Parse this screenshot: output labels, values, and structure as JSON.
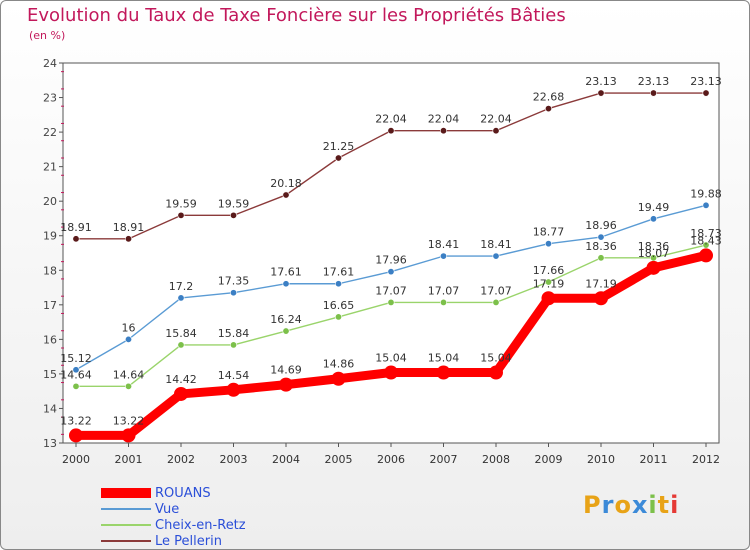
{
  "chart_data": {
    "type": "line",
    "title": "Evolution du Taux de Taxe Foncière sur les Propriétés Bâties",
    "subtitle": "(en %)",
    "xlabel": "",
    "ylabel": "",
    "ylim": [
      13,
      24
    ],
    "yticks": [
      "13",
      "14",
      "15",
      "16",
      "17",
      "18",
      "19",
      "20",
      "21",
      "22",
      "23",
      "24"
    ],
    "categories": [
      "2000",
      "2001",
      "2002",
      "2003",
      "2004",
      "2005",
      "2006",
      "2007",
      "2008",
      "2009",
      "2010",
      "2011",
      "2012"
    ],
    "series": [
      {
        "name": "Le Pellerin",
        "color": "#8b3a3a",
        "dot": "#5a1a1a",
        "values": [
          18.91,
          18.91,
          19.59,
          19.59,
          20.18,
          21.25,
          22.04,
          22.04,
          22.04,
          22.68,
          23.13,
          23.13,
          23.13
        ],
        "labels": [
          "18.91",
          "18.91",
          "19.59",
          "19.59",
          "20.18",
          "21.25",
          "22.04",
          "22.04",
          "22.04",
          "22.68",
          "23.13",
          "23.13",
          "23.13"
        ]
      },
      {
        "name": "Vue",
        "color": "#5a9bd4",
        "dot": "#3b7fc4",
        "values": [
          15.12,
          16,
          17.2,
          17.35,
          17.61,
          17.61,
          17.96,
          18.41,
          18.41,
          18.77,
          18.96,
          19.49,
          19.88
        ],
        "labels": [
          "15.12",
          "16",
          "17.2",
          "17.35",
          "17.61",
          "17.61",
          "17.96",
          "18.41",
          "18.41",
          "18.77",
          "18.96",
          "19.49",
          "19.88"
        ]
      },
      {
        "name": "Cheix-en-Retz",
        "color": "#9ad46b",
        "dot": "#7cc04a",
        "values": [
          14.64,
          14.64,
          15.84,
          15.84,
          16.24,
          16.65,
          17.07,
          17.07,
          17.07,
          17.66,
          18.36,
          18.36,
          18.73
        ],
        "labels": [
          "14.64",
          "14.64",
          "15.84",
          "15.84",
          "16.24",
          "16.65",
          "17.07",
          "17.07",
          "17.07",
          "17.66",
          "18.36",
          "18.36",
          "18.73"
        ]
      },
      {
        "name": "ROUANS",
        "color": "#ff0000",
        "dot": "#ff0000",
        "values": [
          13.22,
          13.22,
          14.42,
          14.54,
          14.69,
          14.86,
          15.04,
          15.04,
          15.04,
          17.19,
          17.19,
          18.07,
          18.43
        ],
        "labels": [
          "13.22",
          "13.22",
          "14.42",
          "14.54",
          "14.69",
          "14.86",
          "15.04",
          "15.04",
          "15.04",
          "17.19",
          "17.19",
          "18.07",
          "18.43"
        ]
      }
    ],
    "legend": [
      "ROUANS",
      "Vue",
      "Cheix-en-Retz",
      "Le Pellerin"
    ]
  },
  "logo": {
    "text": "Proxiti",
    "letter_colors": [
      "#e8a317",
      "#3c8ad8",
      "#e8a317",
      "#3c8ad8",
      "#7cc04a",
      "#e8a317",
      "#e53935"
    ]
  }
}
